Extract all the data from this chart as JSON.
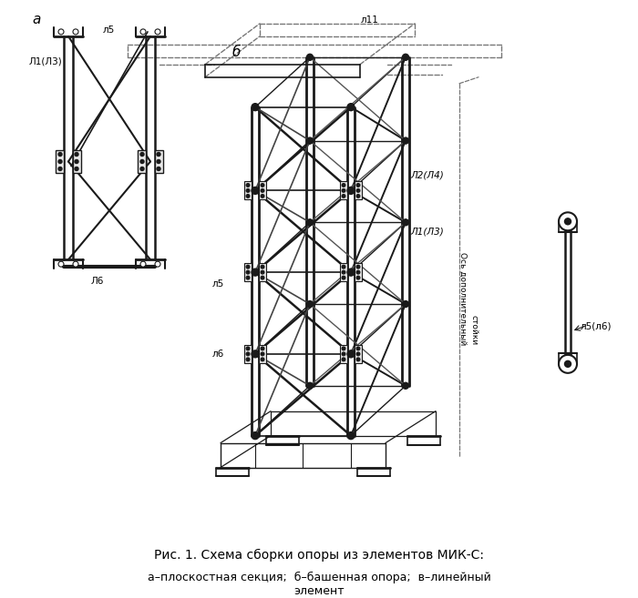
{
  "bg_color": "#ffffff",
  "line_color": "#1a1a1a",
  "dashed_color": "#777777",
  "title_text": "Рис. 1. Схема сборки опоры из элементов МИК-С:",
  "subtitle_text": "а–плоскостная секция;  б–башенная опора;  в–линейный\nэлемент",
  "label_a": "а",
  "label_b": "б",
  "label_l1l3_a": "Л1(Л3)",
  "label_l5_a": "л5",
  "label_l6_a": "Л6",
  "label_l11": "л11",
  "label_l5_b": "л5",
  "label_l6_b": "л6",
  "label_l2l4": "Л2(Л4)",
  "label_l1l3_b": "Л1(Л3)",
  "label_axis": "Ось дополнительный\nстойки",
  "label_l5l6": "л5(л6)",
  "font_size_title": 10,
  "font_size_label": 8
}
